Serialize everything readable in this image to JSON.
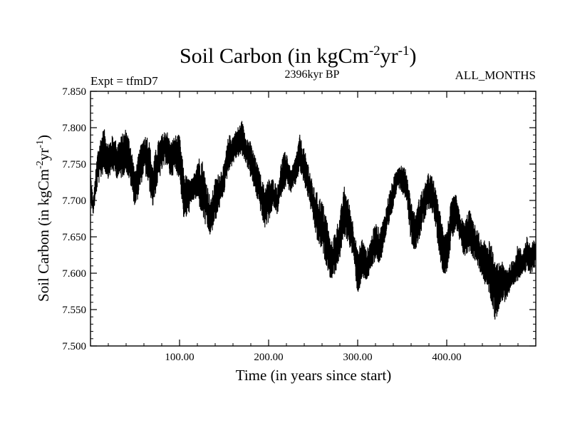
{
  "chart_data": {
    "type": "line",
    "title": "Soil Carbon (in kgCm",
    "title_unit_exp1": "-2",
    "title_unit_mid": "yr",
    "title_unit_exp2": "-1",
    "title_close": ")",
    "left_header": "Expt = tfmD7",
    "center_header": "2396kyr BP",
    "right_header": "ALL_MONTHS",
    "xlabel": "Time (in years since start)",
    "ylabel_main": "Soil Carbon (in kgCm",
    "ylabel_exp1": "-2",
    "ylabel_mid": "yr",
    "ylabel_exp2": "-1",
    "ylabel_close": ")",
    "xlim": [
      0,
      500
    ],
    "ylim": [
      7.5,
      7.85
    ],
    "x_ticks": [
      100,
      200,
      300,
      400
    ],
    "x_tick_labels": [
      "100.00",
      "200.00",
      "300.00",
      "400.00"
    ],
    "y_ticks": [
      7.5,
      7.55,
      7.6,
      7.65,
      7.7,
      7.75,
      7.8,
      7.85
    ],
    "y_tick_labels": [
      "7.500",
      "7.550",
      "7.600",
      "7.650",
      "7.700",
      "7.750",
      "7.800",
      "7.850"
    ],
    "envelope": {
      "x": [
        0,
        3,
        8,
        12,
        15,
        20,
        25,
        30,
        35,
        40,
        45,
        50,
        55,
        60,
        65,
        70,
        75,
        80,
        85,
        90,
        95,
        100,
        105,
        110,
        115,
        120,
        125,
        130,
        135,
        140,
        145,
        150,
        155,
        160,
        165,
        170,
        175,
        180,
        185,
        190,
        195,
        200,
        205,
        210,
        215,
        220,
        225,
        230,
        235,
        240,
        245,
        250,
        255,
        260,
        265,
        270,
        275,
        280,
        285,
        290,
        295,
        300,
        305,
        310,
        315,
        320,
        325,
        330,
        335,
        340,
        345,
        350,
        355,
        360,
        365,
        370,
        375,
        380,
        385,
        390,
        395,
        400,
        405,
        410,
        415,
        420,
        425,
        430,
        435,
        440,
        445,
        450,
        455,
        460,
        465,
        470,
        475,
        480,
        485,
        490,
        495,
        500
      ],
      "high": [
        7.74,
        7.7,
        7.77,
        7.79,
        7.8,
        7.78,
        7.79,
        7.78,
        7.79,
        7.8,
        7.78,
        7.74,
        7.77,
        7.79,
        7.79,
        7.75,
        7.78,
        7.79,
        7.8,
        7.78,
        7.79,
        7.79,
        7.74,
        7.73,
        7.73,
        7.76,
        7.76,
        7.73,
        7.7,
        7.73,
        7.74,
        7.75,
        7.79,
        7.79,
        7.8,
        7.81,
        7.79,
        7.78,
        7.76,
        7.74,
        7.72,
        7.73,
        7.73,
        7.72,
        7.76,
        7.77,
        7.74,
        7.76,
        7.79,
        7.77,
        7.75,
        7.72,
        7.71,
        7.7,
        7.68,
        7.64,
        7.66,
        7.68,
        7.72,
        7.7,
        7.67,
        7.63,
        7.65,
        7.63,
        7.65,
        7.67,
        7.66,
        7.68,
        7.71,
        7.73,
        7.75,
        7.75,
        7.74,
        7.7,
        7.68,
        7.71,
        7.72,
        7.74,
        7.73,
        7.7,
        7.67,
        7.66,
        7.7,
        7.71,
        7.68,
        7.67,
        7.69,
        7.67,
        7.66,
        7.64,
        7.65,
        7.64,
        7.61,
        7.62,
        7.61,
        7.61,
        7.62,
        7.64,
        7.63,
        7.65,
        7.64,
        7.65
      ],
      "low": [
        7.7,
        7.68,
        7.72,
        7.73,
        7.74,
        7.73,
        7.74,
        7.73,
        7.73,
        7.74,
        7.72,
        7.69,
        7.71,
        7.74,
        7.72,
        7.69,
        7.72,
        7.74,
        7.75,
        7.73,
        7.74,
        7.73,
        7.67,
        7.68,
        7.7,
        7.7,
        7.68,
        7.66,
        7.65,
        7.67,
        7.69,
        7.71,
        7.74,
        7.75,
        7.76,
        7.76,
        7.75,
        7.73,
        7.71,
        7.69,
        7.66,
        7.67,
        7.69,
        7.68,
        7.71,
        7.72,
        7.71,
        7.72,
        7.74,
        7.72,
        7.7,
        7.67,
        7.64,
        7.63,
        7.61,
        7.59,
        7.6,
        7.62,
        7.65,
        7.64,
        7.62,
        7.57,
        7.59,
        7.59,
        7.6,
        7.62,
        7.61,
        7.64,
        7.66,
        7.69,
        7.72,
        7.71,
        7.7,
        7.64,
        7.63,
        7.65,
        7.67,
        7.69,
        7.68,
        7.64,
        7.6,
        7.6,
        7.64,
        7.66,
        7.64,
        7.62,
        7.63,
        7.62,
        7.61,
        7.59,
        7.58,
        7.56,
        7.53,
        7.56,
        7.56,
        7.57,
        7.58,
        7.59,
        7.6,
        7.6,
        7.6,
        7.61
      ]
    }
  }
}
